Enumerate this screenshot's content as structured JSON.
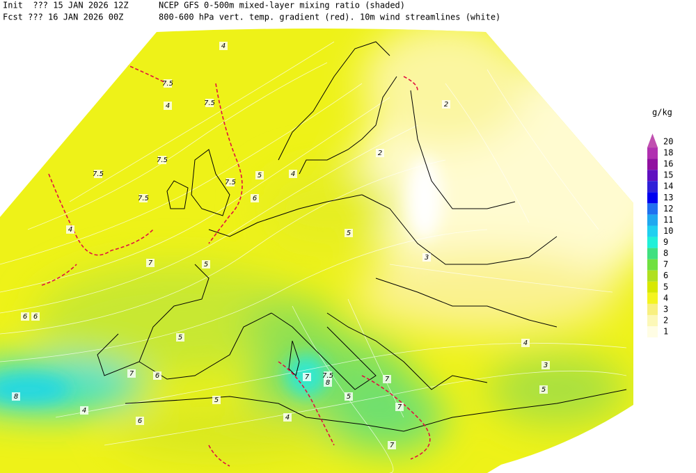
{
  "header": {
    "init": "Init  ??? 15 JAN 2026 12Z",
    "title": "NCEP GFS 0-500m mixed-layer mixing ratio (shaded)",
    "fcst": "Fcst ??? 16 JAN 2026 00Z",
    "subtitle": "800-600 hPa vert. temp. gradient (red). 10m wind streamlines (white)"
  },
  "legend": {
    "unit": "g/kg",
    "levels": [
      {
        "value": 20,
        "color": "#c050b0"
      },
      {
        "value": 18,
        "color": "#b030b0"
      },
      {
        "value": 16,
        "color": "#9010a0"
      },
      {
        "value": 15,
        "color": "#6010c0"
      },
      {
        "value": 14,
        "color": "#3020d8"
      },
      {
        "value": 13,
        "color": "#0000f0"
      },
      {
        "value": 12,
        "color": "#2070f0"
      },
      {
        "value": 11,
        "color": "#20a8f0"
      },
      {
        "value": 10,
        "color": "#20d0f0"
      },
      {
        "value": 9,
        "color": "#20f0d8"
      },
      {
        "value": 8,
        "color": "#40e080"
      },
      {
        "value": 7,
        "color": "#70e040"
      },
      {
        "value": 6,
        "color": "#b0e020"
      },
      {
        "value": 5,
        "color": "#d8e800"
      },
      {
        "value": 4,
        "color": "#f4f420"
      },
      {
        "value": 3,
        "color": "#f8f080"
      },
      {
        "value": 2,
        "color": "#fcf8b8"
      },
      {
        "value": 1,
        "color": "#fffde4"
      }
    ]
  },
  "contour_labels": [
    "4",
    "7.5",
    "7.5",
    "4",
    "7.5",
    "7.5",
    "7.5",
    "5",
    "4",
    "7.5",
    "6",
    "5",
    "7",
    "4",
    "5",
    "6",
    "7",
    "7",
    "7.5",
    "8",
    "7",
    "7",
    "6",
    "5",
    "4",
    "3",
    "2",
    "4",
    "5",
    "6",
    "3",
    "4",
    "5",
    "6",
    "8",
    "7",
    "5",
    "2"
  ]
}
